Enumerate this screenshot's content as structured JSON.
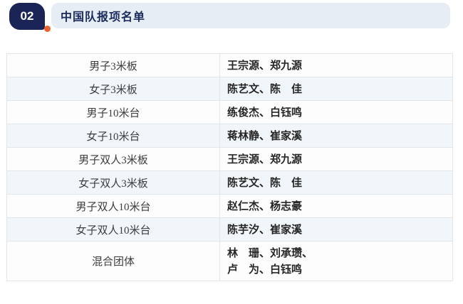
{
  "header": {
    "badge_number": "02",
    "title": "中国队报项名单"
  },
  "colors": {
    "badge_bg": "#1a2456",
    "badge_text": "#ffffff",
    "title_color": "#1a2a5c",
    "bar_bg": "#e7edf4",
    "dot_color": "#e7622d",
    "row_alt_bg": "#f1f6fa",
    "row_bg": "#fdfdfd",
    "border_color": "#e2e6ea",
    "event_text": "#3d3d3d",
    "athlete_text": "#262626"
  },
  "table": {
    "rows": [
      {
        "event": "男子3米板",
        "athletes": [
          "王宗源、郑九源"
        ]
      },
      {
        "event": "女子3米板",
        "athletes": [
          "陈艺文、陈　佳"
        ]
      },
      {
        "event": "男子10米台",
        "athletes": [
          "练俊杰、白钰鸣"
        ]
      },
      {
        "event": "女子10米台",
        "athletes": [
          "蒋林静、崔家溪"
        ]
      },
      {
        "event": "男子双人3米板",
        "athletes": [
          "王宗源、郑九源"
        ]
      },
      {
        "event": "女子双人3米板",
        "athletes": [
          "陈艺文、陈　佳"
        ]
      },
      {
        "event": "男子双人10米台",
        "athletes": [
          "赵仁杰、杨志豪"
        ]
      },
      {
        "event": "女子双人10米台",
        "athletes": [
          "陈芋汐、崔家溪"
        ]
      },
      {
        "event": "混合团体",
        "athletes": [
          "林　珊、刘承瓒、",
          "卢　为、白钰鸣"
        ]
      }
    ]
  }
}
